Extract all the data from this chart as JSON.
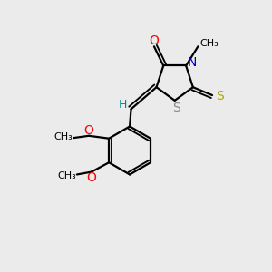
{
  "bg_color": "#ebebeb",
  "atom_colors": {
    "O": "#ff0000",
    "N": "#0000cc",
    "S_thio": "#aaaa00",
    "S_ring": "#888888",
    "C": "#000000",
    "H": "#008888",
    "methoxy_O": "#ff0000"
  },
  "figsize": [
    3.0,
    3.0
  ],
  "dpi": 100,
  "xlim": [
    0,
    10
  ],
  "ylim": [
    0,
    10
  ]
}
